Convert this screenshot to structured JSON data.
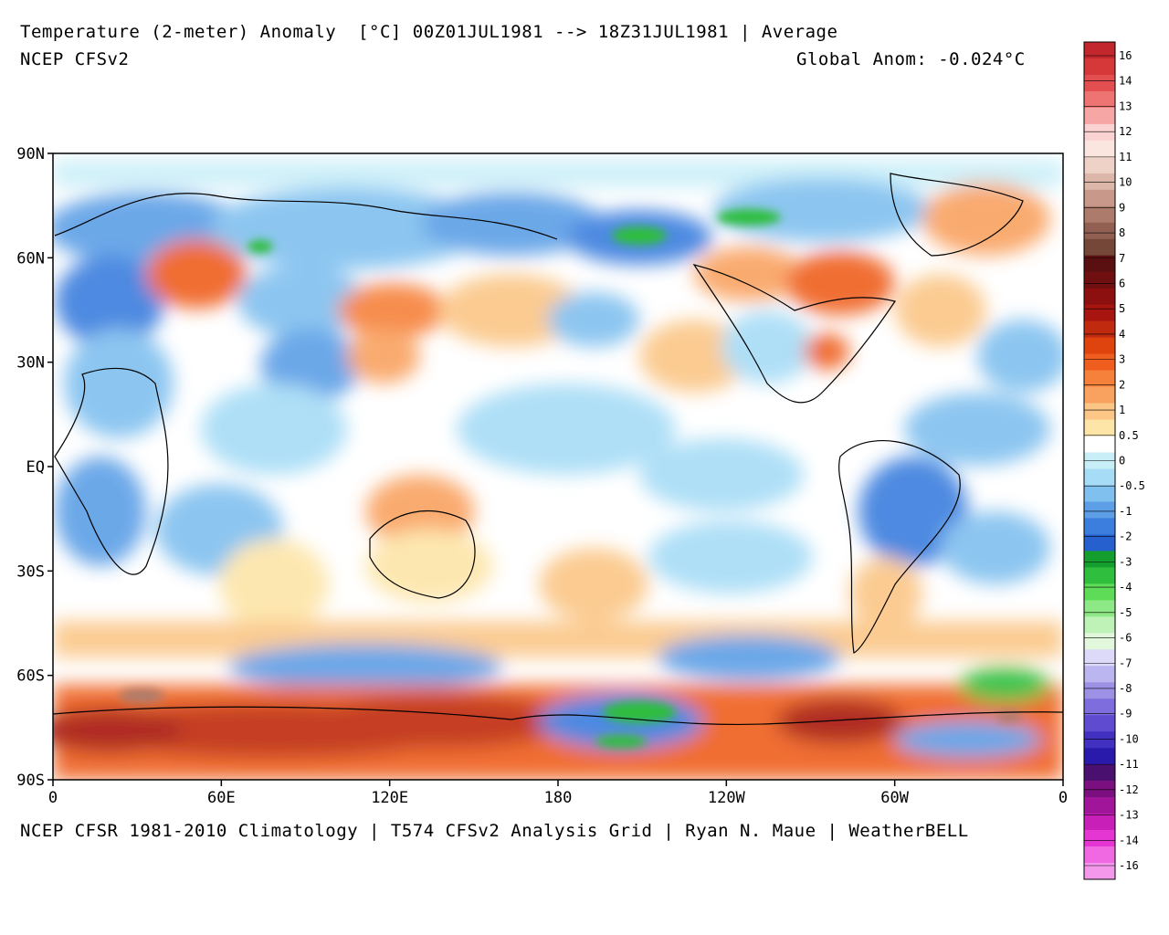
{
  "header": {
    "title": "Temperature (2-meter) Anomaly  [°C] 00Z01JUL1981 --> 18Z31JUL1981 | Average",
    "model": "NCEP CFSv2",
    "global_anom": "Global Anom: -0.024°C"
  },
  "footer": {
    "credit": "NCEP CFSR 1981-2010 Climatology | T574 CFSv2 Analysis Grid | Ryan N. Maue | WeatherBELL"
  },
  "map": {
    "lat_labels": [
      "90N",
      "60N",
      "30N",
      "EQ",
      "30S",
      "60S",
      "90S"
    ],
    "lon_labels": [
      "0",
      "60E",
      "120E",
      "180",
      "120W",
      "60W",
      "0"
    ]
  },
  "colorbar": {
    "labels": [
      "16",
      "14",
      "13",
      "12",
      "11",
      "10",
      "9",
      "8",
      "7",
      "6",
      "5",
      "4",
      "3",
      "2",
      "1",
      "0.5",
      "0",
      "-0.5",
      "-1",
      "-2",
      "-3",
      "-4",
      "-5",
      "-6",
      "-7",
      "-8",
      "-9",
      "-10",
      "-11",
      "-12",
      "-13",
      "-14",
      "-16"
    ],
    "colors": [
      "#c1272d",
      "#d6383a",
      "#e34f50",
      "#ee7474",
      "#f7a6a6",
      "#fbd2d2",
      "#fbe6df",
      "#efd2c7",
      "#dcb7a9",
      "#c8998a",
      "#ad7b6c",
      "#916053",
      "#744739",
      "#5a1010",
      "#700f0f",
      "#8d1010",
      "#a81410",
      "#c02a0e",
      "#df440f",
      "#ef5e1f",
      "#f6813a",
      "#f9a260",
      "#fbc686",
      "#fde5a8",
      "#ffffff",
      "#c8eef8",
      "#a6dcf6",
      "#80c0ef",
      "#5c9fe6",
      "#3b7ede",
      "#2660cf",
      "#149e2e",
      "#2fbe3e",
      "#5edc58",
      "#8fe886",
      "#bef2b7",
      "#e1f8dc",
      "#dcdaf8",
      "#bcb6f0",
      "#9d91e6",
      "#7e6ddc",
      "#5f4bd0",
      "#4230c0",
      "#2a1aab",
      "#4a1070",
      "#7b0f7f",
      "#a0159a",
      "#c81fb8",
      "#e535d2",
      "#f068e2",
      "#f498ec"
    ]
  }
}
